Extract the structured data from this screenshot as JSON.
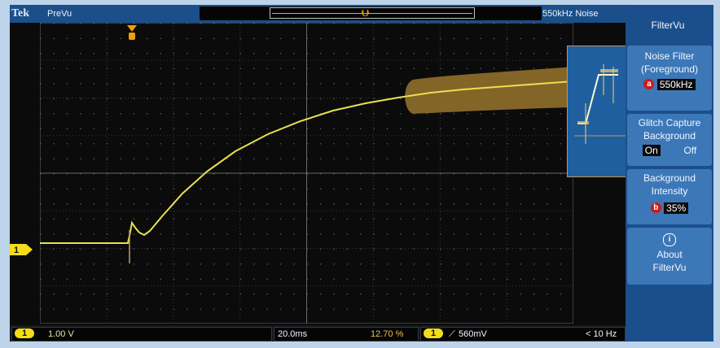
{
  "top_bar": {
    "brand": "Tek",
    "mode": "PreVu",
    "filter_readout": "550kHz Noise"
  },
  "waveform": {
    "channel_marker": "1",
    "trigger_icon": "trigger-marker-icon",
    "trace_color": "#e8e050",
    "glitch_band_color": "#8a6a2a"
  },
  "bottom_bar": {
    "ch1_chip": "1",
    "ch1_scale": "1.00 V",
    "timebase": "20.0ms",
    "trigger_position": "12.70 %",
    "trig_chip": "1",
    "trig_slope_icon": "rising-edge-icon",
    "trig_level": "560mV",
    "trig_freq": "< 10 Hz"
  },
  "side_menu": {
    "title": "FilterVu",
    "noise_filter": {
      "line1": "Noise Filter",
      "line2": "(Foreground)",
      "knob": "a",
      "value": "550kHz"
    },
    "glitch_capture": {
      "line1": "Glitch Capture",
      "line2": "Background",
      "on": "On",
      "off": "Off"
    },
    "background_intensity": {
      "line1": "Background",
      "line2": "Intensity",
      "knob": "b",
      "value": "35%"
    },
    "about": {
      "icon": "info-icon",
      "icon_glyph": "i",
      "line1": "About",
      "line2": "FilterVu"
    }
  },
  "colors": {
    "screen_bg": "#0b0b0b",
    "bar_blue": "#1a4f8a",
    "menu_blue": "#3c78b8",
    "channel_yellow": "#f2dd18",
    "knob_red": "#c81b1b"
  }
}
